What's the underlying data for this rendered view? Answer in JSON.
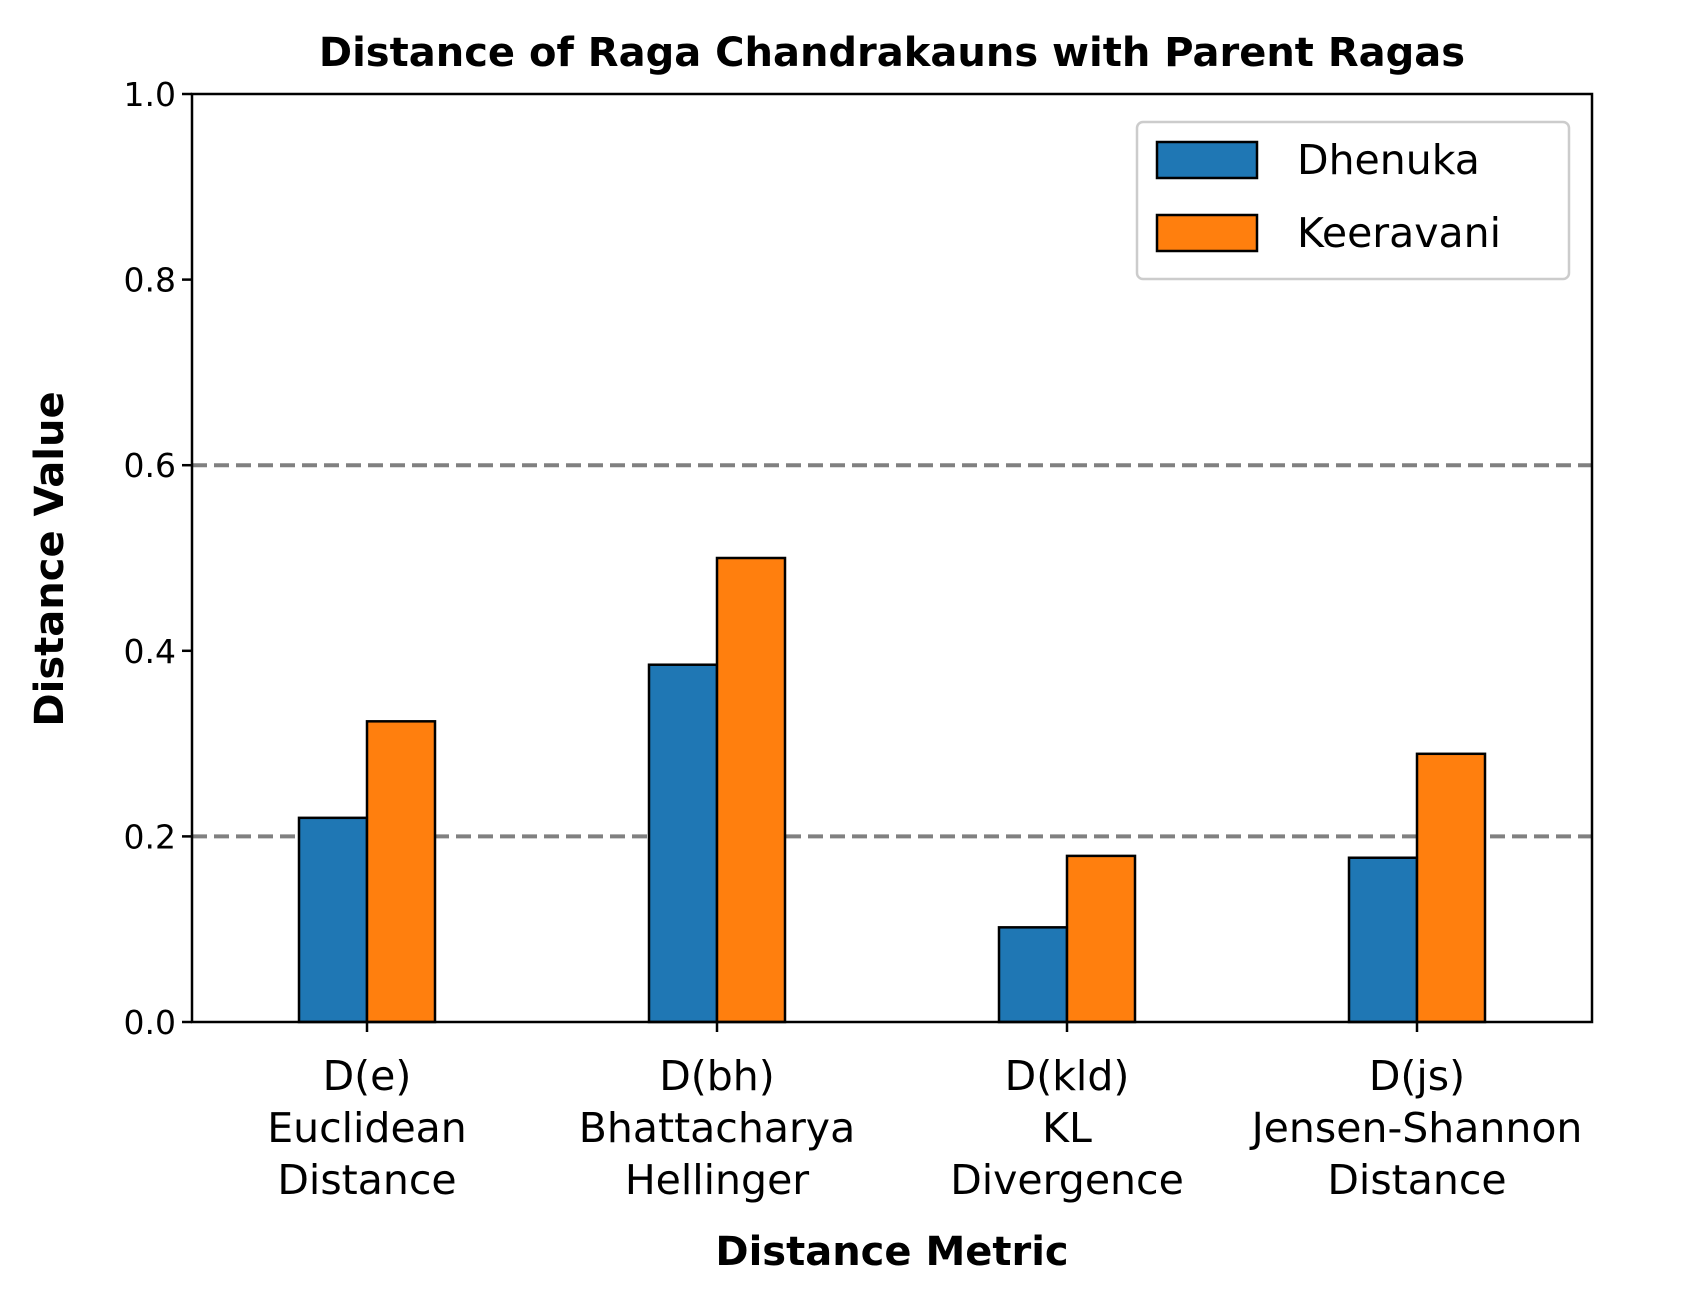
{
  "chart_data": {
    "type": "bar",
    "title": "Distance of Raga Chandrakauns with Parent Ragas",
    "xlabel": "Distance Metric",
    "ylabel": "Distance Value",
    "ylim": [
      0,
      1.0
    ],
    "yticks": [
      "0.0",
      "0.2",
      "0.4",
      "0.6",
      "0.8",
      "1.0"
    ],
    "reference_lines": [
      0.2,
      0.6
    ],
    "grid": false,
    "legend_position": "top-right",
    "categories": [
      "D(e)\nEuclidean\nDistance",
      "D(bh)\nBhattacharya\nHellinger",
      "D(kld)\nKL\nDivergence",
      "D(js)\nJensen-Shannon\nDistance"
    ],
    "series": [
      {
        "name": "Dhenuka",
        "color": "#1f77b4",
        "values": [
          0.22,
          0.385,
          0.102,
          0.177
        ]
      },
      {
        "name": "Keeravani",
        "color": "#ff7f0e",
        "values": [
          0.324,
          0.5,
          0.179,
          0.289
        ]
      }
    ]
  }
}
